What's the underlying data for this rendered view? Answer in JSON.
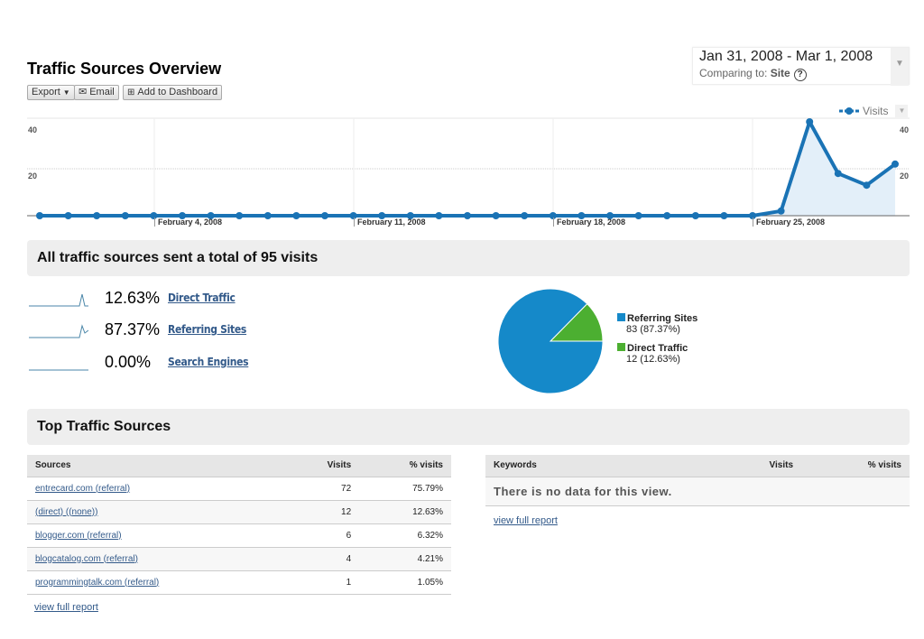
{
  "header": {
    "title": "Traffic Sources Overview",
    "toolbar": {
      "export": "Export",
      "email": "Email",
      "add_to_dashboard": "Add to Dashboard"
    },
    "date_range": "Jan 31, 2008 - Mar 1, 2008",
    "comparing_label": "Comparing to:",
    "comparing_value": "Site",
    "help": "?"
  },
  "chart_data": {
    "type": "area",
    "legend": [
      "Visits"
    ],
    "legend_placement": "top-right",
    "series": [
      {
        "name": "Visits",
        "color": "#1a73b5",
        "values": [
          0,
          0,
          0,
          0,
          0,
          0,
          0,
          0,
          0,
          0,
          0,
          0,
          0,
          0,
          0,
          0,
          0,
          0,
          0,
          0,
          0,
          0,
          0,
          0,
          0,
          0,
          2,
          40,
          18,
          13,
          22
        ]
      }
    ],
    "x": [
      "Jan 31",
      "Feb 1",
      "Feb 2",
      "Feb 3",
      "Feb 4",
      "Feb 5",
      "Feb 6",
      "Feb 7",
      "Feb 8",
      "Feb 9",
      "Feb 10",
      "Feb 11",
      "Feb 12",
      "Feb 13",
      "Feb 14",
      "Feb 15",
      "Feb 16",
      "Feb 17",
      "Feb 18",
      "Feb 19",
      "Feb 20",
      "Feb 21",
      "Feb 22",
      "Feb 23",
      "Feb 24",
      "Feb 25",
      "Feb 26",
      "Feb 27",
      "Feb 28",
      "Feb 29",
      "Mar 1"
    ],
    "x_tick_labels": [
      "February 4, 2008",
      "February 11, 2008",
      "February 18, 2008",
      "February 25, 2008"
    ],
    "y_tick_labels": [
      "40",
      "20"
    ],
    "ylim": [
      0,
      40
    ],
    "grid": true
  },
  "summary": {
    "heading": "All traffic sources sent a total of 95 visits",
    "rows": [
      {
        "pct": "12.63%",
        "label": "Direct Traffic"
      },
      {
        "pct": "87.37%",
        "label": "Referring Sites"
      },
      {
        "pct": "0.00%",
        "label": "Search Engines"
      }
    ],
    "pie": [
      {
        "label": "Referring Sites",
        "value": 83,
        "detail": "83 (87.37%)",
        "color": "#1589c9"
      },
      {
        "label": "Direct Traffic",
        "value": 12,
        "detail": "12 (12.63%)",
        "color": "#4caf31"
      }
    ]
  },
  "top": {
    "heading": "Top Traffic Sources",
    "sources": {
      "headers": [
        "Sources",
        "Visits",
        "% visits"
      ],
      "rows": [
        [
          "entrecard.com (referral)",
          "72",
          "75.79%"
        ],
        [
          "(direct) ((none))",
          "12",
          "12.63%"
        ],
        [
          "blogger.com (referral)",
          "6",
          "6.32%"
        ],
        [
          "blogcatalog.com (referral)",
          "4",
          "4.21%"
        ],
        [
          "programmingtalk.com (referral)",
          "1",
          "1.05%"
        ]
      ],
      "link": "view full report"
    },
    "keywords": {
      "headers": [
        "Keywords",
        "Visits",
        "% visits"
      ],
      "empty": "There is no data for this view.",
      "link": "view full report"
    }
  }
}
